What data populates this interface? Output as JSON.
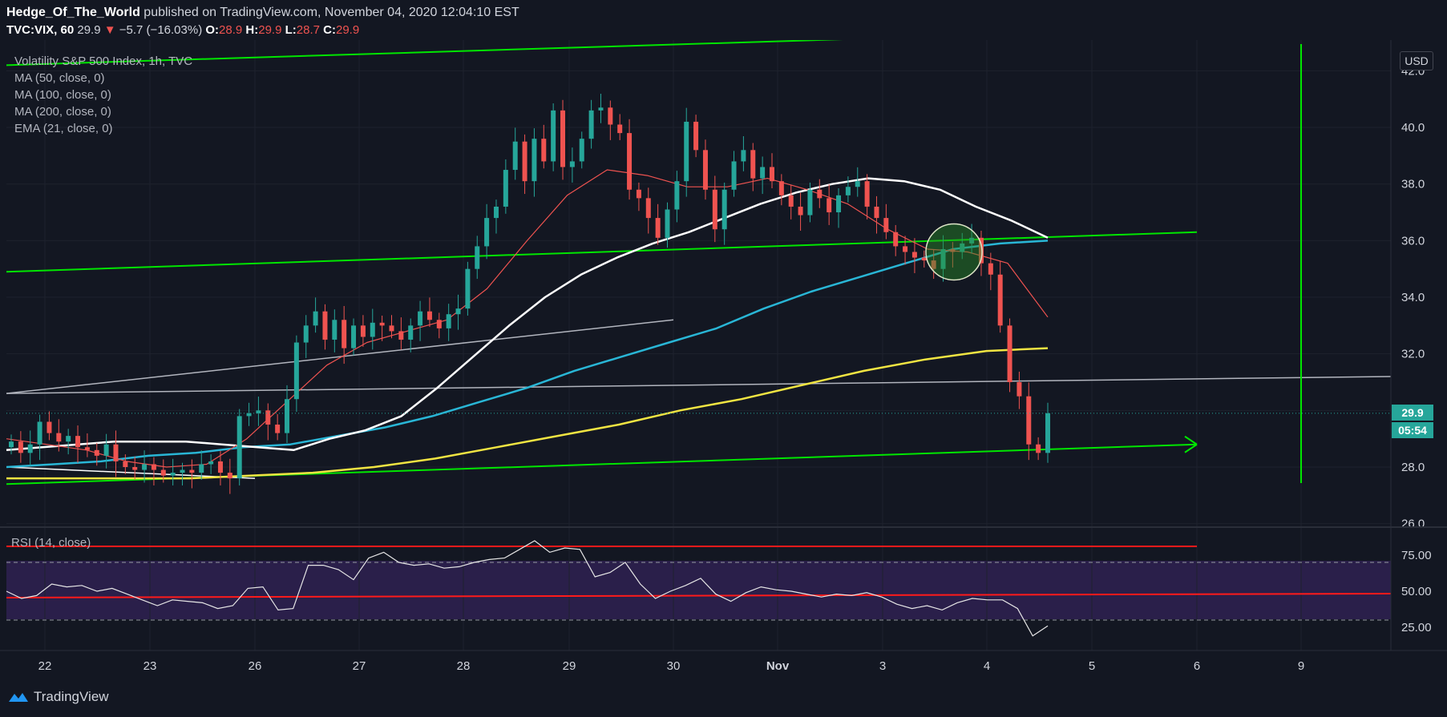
{
  "header": {
    "author": "Hedge_Of_The_World",
    "published": "published on TradingView.com, November 04, 2020 12:04:10 EST",
    "symbol": "TVC:VIX, 60",
    "last": "29.9",
    "change_arrow": "▼",
    "change": "−5.7 (−16.03%)",
    "o_label": "O:",
    "o_value": "28.9",
    "h_label": "H:",
    "h_value": "29.9",
    "l_label": "L:",
    "l_value": "28.7",
    "c_label": "C:",
    "c_value": "29.9"
  },
  "legend": {
    "title": "Volatility S&P 500 Index, 1h, TVC",
    "ma50": "MA (50, close, 0)",
    "ma100": "MA (100, close, 0)",
    "ma200": "MA (200, close, 0)",
    "ema21": "EMA (21, close, 0)"
  },
  "rsi_legend": "RSI (14, close)",
  "currency": "USD",
  "price_tag": "29.9",
  "countdown": "05:54",
  "footer": {
    "brand": "TradingView"
  },
  "colors": {
    "background": "#131722",
    "up": "#26a69a",
    "down": "#ef5350",
    "channel": "#00e600",
    "ma50": "#ffffff",
    "ma100": "#29b6d6",
    "ma200": "#f0e442",
    "ema21": "#ef5350",
    "rsi_band": "#2a1f4a"
  },
  "chart_data": [
    {
      "type": "candlestick",
      "title": "Volatility S&P 500 Index, 1h, TVC",
      "x_ticks": [
        "22",
        "23",
        "26",
        "27",
        "28",
        "29",
        "30",
        "Nov",
        "3",
        "4",
        "5",
        "6",
        "9"
      ],
      "y_ticks": [
        "26.0",
        "28.0",
        "30.0",
        "32.0",
        "34.0",
        "36.0",
        "38.0",
        "40.0",
        "42.0"
      ],
      "ylim": [
        26,
        42.2
      ],
      "ohlc_close": [
        28.9,
        28.5,
        28.8,
        29.6,
        29.2,
        28.9,
        29.1,
        28.7,
        28.6,
        28.4,
        28.8,
        28.2,
        28.0,
        27.9,
        28.1,
        27.9,
        27.7,
        27.8,
        27.9,
        27.8,
        28.1,
        28.2,
        27.8,
        27.6,
        29.8,
        29.9,
        30.0,
        29.5,
        29.2,
        30.4,
        32.4,
        33.0,
        33.5,
        32.5,
        33.2,
        32.2,
        33.0,
        32.6,
        33.1,
        33.0,
        32.8,
        32.5,
        33.0,
        33.5,
        33.2,
        32.9,
        33.4,
        33.6,
        35.0,
        35.8,
        36.8,
        37.2,
        38.5,
        39.5,
        38.1,
        39.6,
        38.8,
        40.6,
        38.6,
        38.8,
        39.6,
        40.6,
        40.7,
        40.1,
        39.8,
        37.8,
        37.5,
        36.8,
        36.1,
        37.1,
        38.1,
        40.2,
        39.2,
        37.8,
        36.4,
        37.8,
        38.8,
        39.2,
        38.2,
        38.6,
        38.1,
        37.6,
        37.2,
        36.9,
        37.8,
        37.5,
        37.0,
        37.6,
        37.9,
        38.1,
        37.2,
        36.8,
        36.3,
        35.8,
        35.6,
        35.4,
        35.3,
        35.0,
        35.7,
        35.6,
        35.9,
        36.1,
        35.2,
        34.8,
        33.0,
        31.0,
        30.5,
        28.8,
        28.5,
        29.9
      ],
      "indicators": {
        "ma50": [
          28.6,
          28.7,
          28.8,
          28.9,
          28.9,
          28.9,
          28.8,
          28.7,
          28.6,
          29.0,
          29.3,
          29.8,
          30.8,
          31.9,
          33.0,
          34.0,
          34.8,
          35.4,
          35.9,
          36.3,
          36.8,
          37.3,
          37.7,
          38.0,
          38.2,
          38.1,
          37.8,
          37.2,
          36.7,
          36.1
        ],
        "ma100": [
          28.0,
          28.1,
          28.2,
          28.4,
          28.5,
          28.7,
          28.8,
          29.1,
          29.4,
          29.8,
          30.3,
          30.8,
          31.4,
          31.9,
          32.4,
          32.9,
          33.6,
          34.2,
          34.7,
          35.2,
          35.7,
          35.9,
          36.0
        ],
        "ma200": [
          27.6,
          27.6,
          27.6,
          27.6,
          27.7,
          27.8,
          28.0,
          28.3,
          28.7,
          29.1,
          29.5,
          30.0,
          30.4,
          30.9,
          31.4,
          31.8,
          32.1,
          32.2
        ],
        "ema21": [
          29.0,
          28.8,
          28.6,
          28.2,
          28.0,
          28.1,
          29.0,
          30.3,
          31.6,
          32.4,
          32.8,
          33.2,
          34.3,
          36.0,
          37.6,
          38.5,
          38.3,
          37.9,
          37.9,
          38.2,
          37.8,
          37.3,
          36.4,
          35.7,
          35.6,
          35.2,
          33.3
        ]
      },
      "trendlines": [
        {
          "kind": "channel-top",
          "from": [
            21.9,
            42.2
          ],
          "to": [
            6.0,
            43.5
          ]
        },
        {
          "kind": "channel-mid",
          "from": [
            21.9,
            34.9
          ],
          "to": [
            6.0,
            36.3
          ]
        },
        {
          "kind": "channel-bottom",
          "from": [
            21.9,
            27.4
          ],
          "to": [
            6.0,
            28.8
          ]
        }
      ],
      "grid": true
    },
    {
      "type": "line",
      "title": "RSI (14, close)",
      "y_ticks": [
        "25.00",
        "50.00",
        "75.00"
      ],
      "ylim": [
        10,
        90
      ],
      "values": [
        50,
        45,
        47,
        55,
        53,
        54,
        50,
        52,
        48,
        44,
        40,
        44,
        43,
        42,
        38,
        40,
        52,
        53,
        37,
        38,
        68,
        68,
        65,
        58,
        73,
        77,
        70,
        68,
        69,
        66,
        67,
        70,
        72,
        73,
        79,
        85,
        77,
        80,
        79,
        60,
        63,
        70,
        55,
        45,
        50,
        54,
        59,
        48,
        43,
        49,
        53,
        51,
        50,
        48,
        46,
        48,
        47,
        49,
        46,
        41,
        38,
        40,
        37,
        42,
        45,
        44,
        44,
        38,
        19,
        26
      ],
      "overbought": 70,
      "oversold": 30
    }
  ]
}
